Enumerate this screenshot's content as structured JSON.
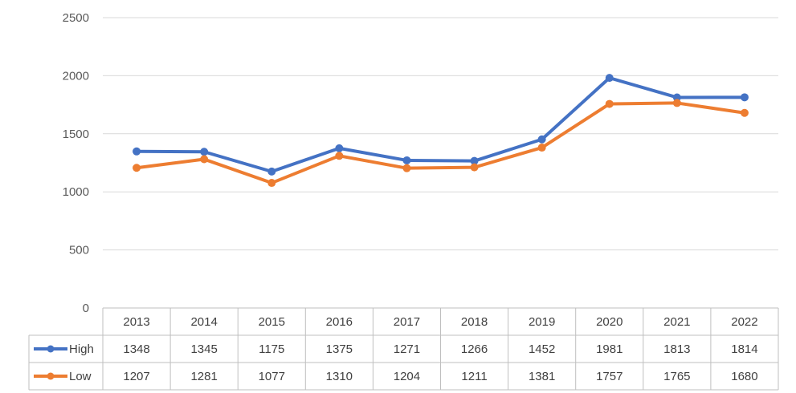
{
  "chart_data": {
    "type": "line",
    "categories": [
      "2013",
      "2014",
      "2015",
      "2016",
      "2017",
      "2018",
      "2019",
      "2020",
      "2021",
      "2022"
    ],
    "series": [
      {
        "name": "High",
        "color": "#4472C4",
        "values": [
          1348,
          1345,
          1175,
          1375,
          1271,
          1266,
          1452,
          1981,
          1813,
          1814
        ]
      },
      {
        "name": "Low",
        "color": "#ED7D31",
        "values": [
          1207,
          1281,
          1077,
          1310,
          1204,
          1211,
          1381,
          1757,
          1765,
          1680
        ]
      }
    ],
    "y_ticks": [
      "0",
      "500",
      "1000",
      "1500",
      "2000",
      "2500"
    ],
    "ylim": [
      0,
      2500
    ],
    "grid": true,
    "data_table": true,
    "legend": "data-table-left"
  }
}
